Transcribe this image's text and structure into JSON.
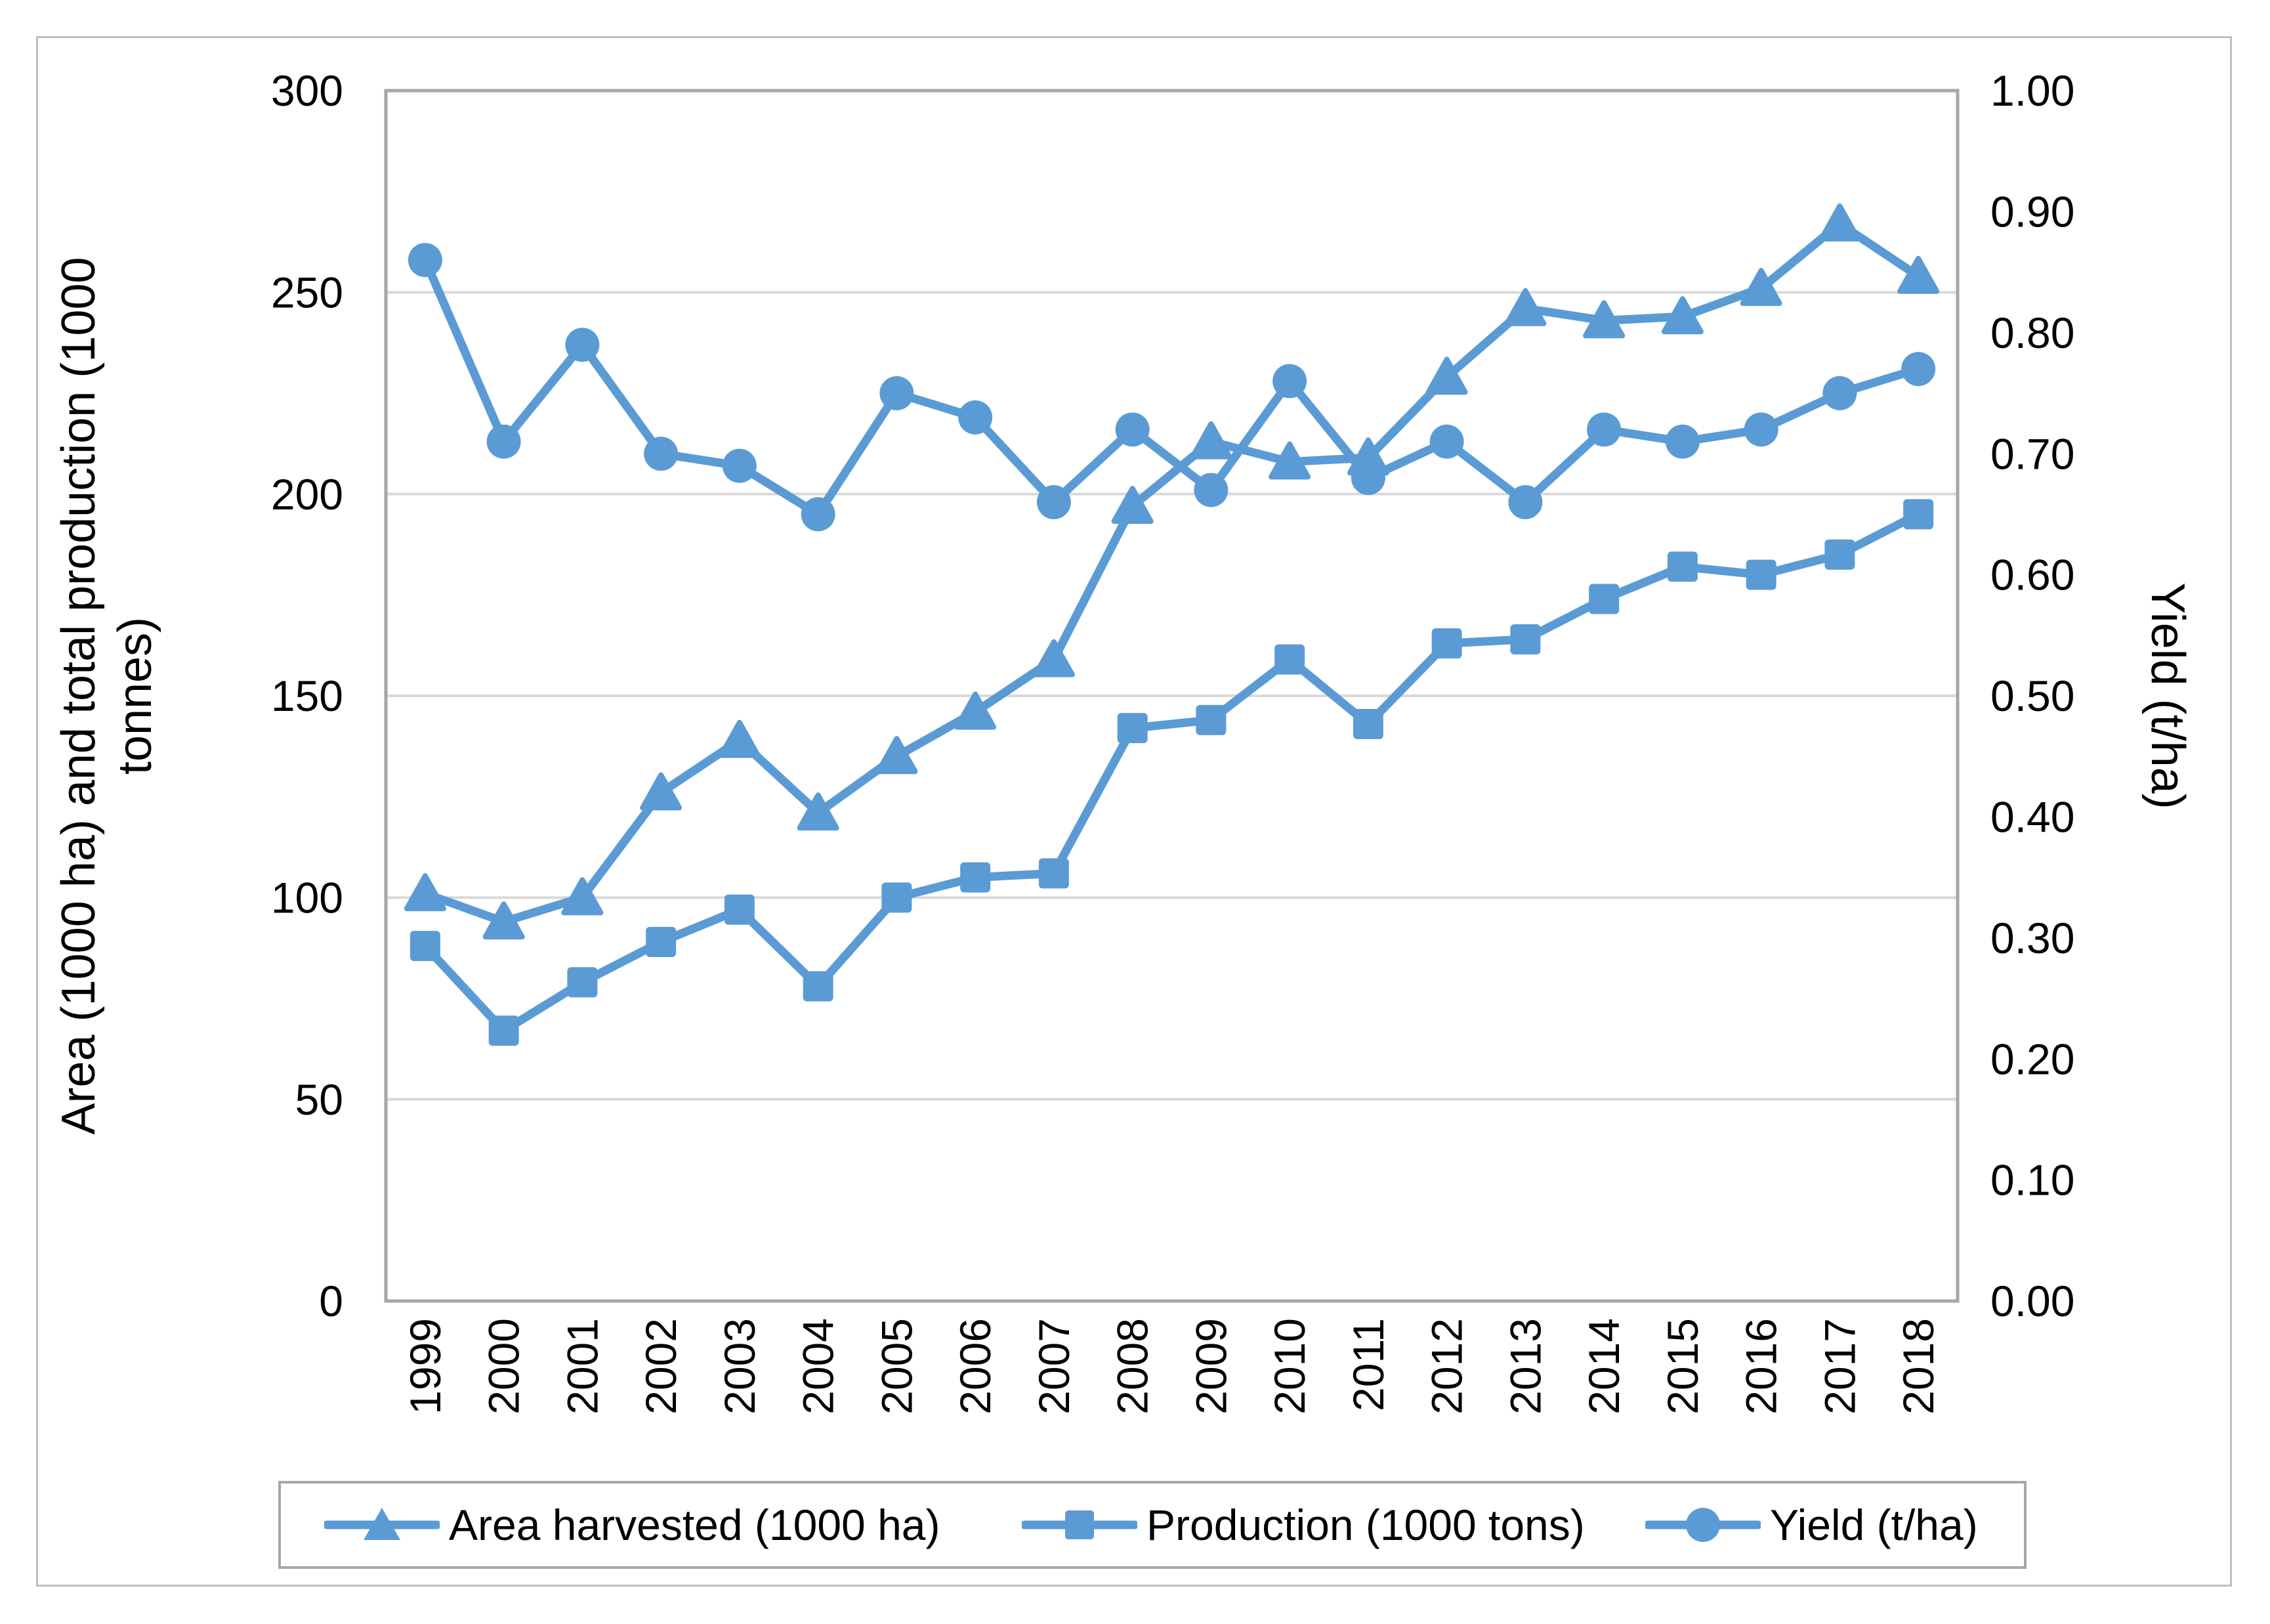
{
  "figure": {
    "left_axis_title": {
      "line1": "Area (1000 ha) and total production (1000",
      "line2": "tonnes)"
    },
    "right_axis_title": "Yield (t/ha)",
    "colors": {
      "accent": "#5B9BD5",
      "gridline": "#D9D9D9",
      "plot_border": "#A6A6A6",
      "legend_border": "#A6A6A6",
      "outer_border": "#BFBFBF",
      "text": "#000000"
    }
  },
  "chart_data": {
    "type": "line",
    "title": "",
    "xlabel": "",
    "ylabel_left": "Area (1000 ha) and total production (1000 tonnes)",
    "ylabel_right": "Yield (t/ha)",
    "grid": "horizontal",
    "categories": [
      "1999",
      "2000",
      "2001",
      "2002",
      "2003",
      "2004",
      "2005",
      "2006",
      "2007",
      "2008",
      "2009",
      "2010",
      "2011",
      "2012",
      "2013",
      "2014",
      "2015",
      "2016",
      "2017",
      "2018"
    ],
    "series": [
      {
        "name": "Area harvested (1000 ha)",
        "axis": "left",
        "marker": "triangle",
        "values": [
          101,
          94,
          100,
          126,
          139,
          121,
          135,
          146,
          159,
          197,
          213,
          208,
          209,
          229,
          246,
          243,
          244,
          251,
          267,
          254
        ]
      },
      {
        "name": "Production (1000 tons)",
        "axis": "left",
        "marker": "square",
        "values": [
          88,
          67,
          79,
          89,
          97,
          78,
          100,
          105,
          106,
          142,
          144,
          159,
          143,
          163,
          164,
          174,
          182,
          180,
          185,
          195
        ]
      },
      {
        "name": "Yield (t/ha)",
        "axis": "right",
        "marker": "circle",
        "values": [
          0.86,
          0.71,
          0.79,
          0.7,
          0.69,
          0.65,
          0.75,
          0.73,
          0.66,
          0.72,
          0.67,
          0.76,
          0.68,
          0.71,
          0.66,
          0.72,
          0.71,
          0.72,
          0.75,
          0.77
        ]
      }
    ],
    "left_axis": {
      "min": 0,
      "max": 300,
      "step": 50,
      "tick_labels": [
        "300",
        "250",
        "200",
        "150",
        "100",
        "50",
        "0"
      ]
    },
    "right_axis": {
      "min": 0,
      "max": 1.0,
      "step": 0.1,
      "tick_labels": [
        "1.00",
        "0.90",
        "0.80",
        "0.70",
        "0.60",
        "0.50",
        "0.40",
        "0.30",
        "0.20",
        "0.10",
        "0.00"
      ]
    },
    "legend": {
      "position": "bottom",
      "items": [
        "Area harvested (1000 ha)",
        "Production (1000 tons)",
        "Yield (t/ha)"
      ]
    }
  }
}
